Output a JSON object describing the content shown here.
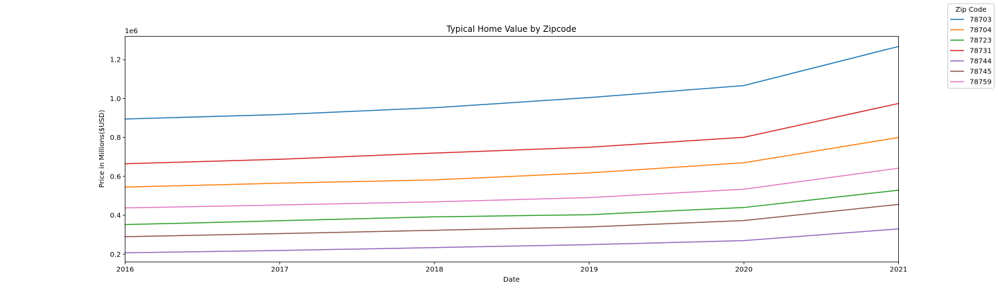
{
  "chart_data": {
    "type": "line",
    "title": "Typical Home Value by Zipcode",
    "xlabel": "Date",
    "ylabel": "Price in Millions($USD)",
    "y_offset_text": "1e6",
    "x": [
      2016,
      2017,
      2018,
      2019,
      2020,
      2021
    ],
    "xlim": [
      2016,
      2021
    ],
    "ylim": [
      0.16,
      1.32
    ],
    "y_scale_factor": 1000000,
    "x_ticks": [
      2016,
      2017,
      2018,
      2019,
      2020,
      2021
    ],
    "x_tick_labels": [
      "2016",
      "2017",
      "2018",
      "2019",
      "2020",
      "2021"
    ],
    "y_ticks": [
      0.2,
      0.4,
      0.6,
      0.8,
      1.0,
      1.2
    ],
    "y_tick_labels": [
      "0.2",
      "0.4",
      "0.6",
      "0.8",
      "1.0",
      "1.2"
    ],
    "grid": false,
    "legend": {
      "title": "Zip Code",
      "placement": "upper-right-outside"
    },
    "series": [
      {
        "name": "78703",
        "color": "#1f77b4",
        "values": [
          0.895,
          0.918,
          0.953,
          1.005,
          1.067,
          1.268
        ]
      },
      {
        "name": "78704",
        "color": "#ff7f0e",
        "values": [
          0.545,
          0.565,
          0.582,
          0.618,
          0.67,
          0.8
        ]
      },
      {
        "name": "78723",
        "color": "#2ca02c",
        "values": [
          0.352,
          0.372,
          0.392,
          0.403,
          0.44,
          0.529
        ]
      },
      {
        "name": "78731",
        "color": "#d62728",
        "values": [
          0.665,
          0.688,
          0.72,
          0.75,
          0.801,
          0.975
        ]
      },
      {
        "name": "78744",
        "color": "#9467bd",
        "values": [
          0.207,
          0.219,
          0.234,
          0.249,
          0.27,
          0.33
        ]
      },
      {
        "name": "78745",
        "color": "#8c564b",
        "values": [
          0.29,
          0.306,
          0.323,
          0.34,
          0.373,
          0.456
        ]
      },
      {
        "name": "78759",
        "color": "#e377c2",
        "values": [
          0.438,
          0.453,
          0.469,
          0.491,
          0.534,
          0.642
        ]
      }
    ]
  }
}
